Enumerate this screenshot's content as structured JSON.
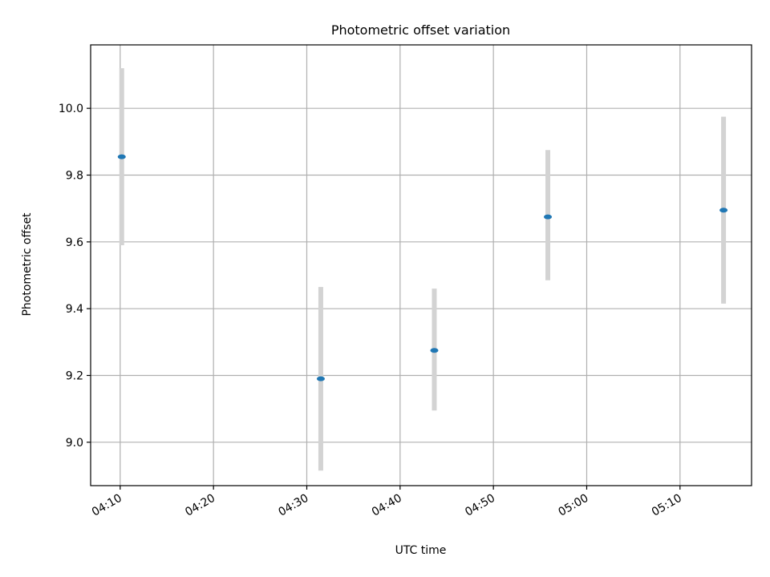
{
  "chart_data": {
    "type": "scatter",
    "title": "Photometric offset variation",
    "xlabel": "UTC time",
    "ylabel": "Photometric offset",
    "x_ticks": [
      "04:10",
      "04:20",
      "04:30",
      "04:40",
      "04:50",
      "05:00",
      "05:10"
    ],
    "y_ticks": [
      "9.0",
      "9.2",
      "9.4",
      "9.6",
      "9.8",
      "10.0"
    ],
    "xlim": [
      "04:06:50",
      "05:17:40"
    ],
    "ylim": [
      8.87,
      10.19
    ],
    "grid": true,
    "points": [
      {
        "x": "04:10:10",
        "y": 9.855,
        "yerr_low": 9.59,
        "yerr_high": 10.12
      },
      {
        "x": "04:31:30",
        "y": 9.19,
        "yerr_low": 8.915,
        "yerr_high": 9.465
      },
      {
        "x": "04:43:40",
        "y": 9.275,
        "yerr_low": 9.095,
        "yerr_high": 9.46
      },
      {
        "x": "04:55:50",
        "y": 9.675,
        "yerr_low": 9.485,
        "yerr_high": 9.875
      },
      {
        "x": "05:14:40",
        "y": 9.695,
        "yerr_low": 9.415,
        "yerr_high": 9.975
      }
    ],
    "colors": {
      "marker": "#1f77b4",
      "errorbar": "#d3d3d3",
      "grid": "#b0b0b0"
    }
  }
}
